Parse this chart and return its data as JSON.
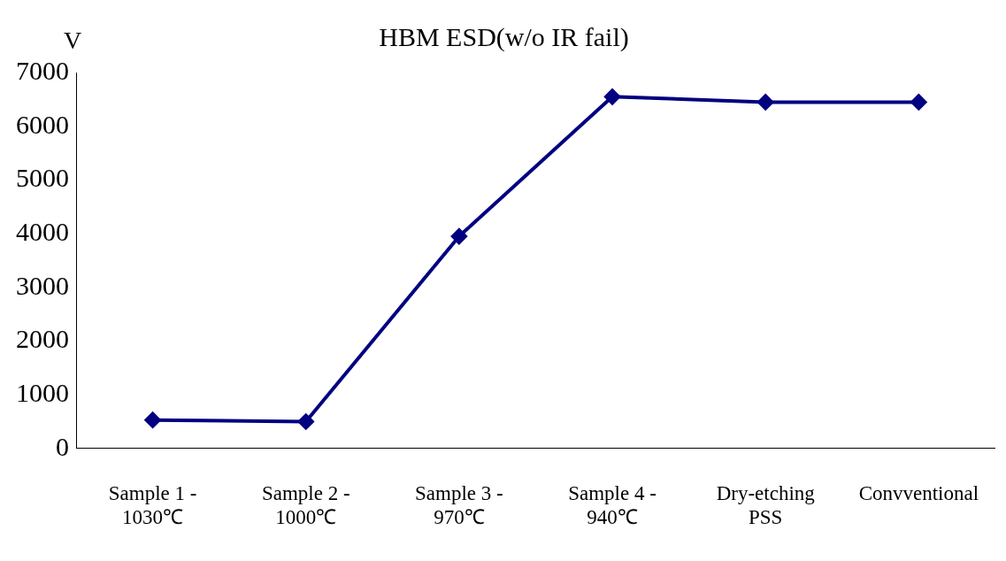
{
  "chart_data": {
    "type": "line",
    "title": "HBM ESD(w/o IR fail)",
    "ylabel": "V",
    "categories": [
      "Sample 1 -\n1030℃",
      "Sample 2 -\n1000℃",
      "Sample 3 -\n970℃",
      "Sample 4 -\n940℃",
      "Dry-etching\nPSS",
      "Convventional"
    ],
    "series": [
      {
        "color": "#000080",
        "values": [
          530,
          500,
          3950,
          6550,
          6450,
          6450
        ]
      }
    ],
    "ylim": [
      0,
      7000
    ],
    "yticks": [
      0,
      1000,
      2000,
      3000,
      4000,
      5000,
      6000,
      7000
    ],
    "grid": false,
    "legend": false,
    "marker": "diamond",
    "line_style": "solid"
  }
}
